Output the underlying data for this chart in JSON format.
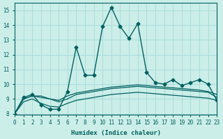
{
  "xlabel": "Humidex (Indice chaleur)",
  "ylabel": "",
  "bg_color": "#cceee8",
  "grid_color": "#aadddd",
  "line_color": "#006060",
  "x_min": 0,
  "x_max": 23,
  "y_min": 8,
  "y_max": 15.5,
  "yticks": [
    8,
    9,
    10,
    11,
    12,
    13,
    14,
    15
  ],
  "xticks": [
    0,
    1,
    2,
    3,
    4,
    5,
    6,
    7,
    8,
    9,
    10,
    11,
    12,
    13,
    14,
    15,
    16,
    17,
    18,
    19,
    20,
    21,
    22,
    23
  ],
  "series": [
    {
      "x": [
        0,
        1,
        2,
        3,
        4,
        5,
        6,
        7,
        8,
        9,
        10,
        11,
        12,
        13,
        14,
        15,
        16,
        17,
        18,
        19,
        20,
        21,
        22,
        23
      ],
      "y": [
        8.0,
        9.1,
        9.3,
        8.6,
        8.3,
        8.3,
        9.5,
        12.5,
        10.6,
        10.6,
        13.9,
        15.2,
        13.9,
        13.1,
        14.1,
        10.8,
        10.1,
        10.0,
        10.3,
        9.9,
        10.1,
        10.3,
        10.0,
        8.9
      ],
      "marker": "D",
      "markersize": 2.5,
      "linewidth": 1.0
    },
    {
      "x": [
        0,
        1,
        2,
        3,
        4,
        5,
        6,
        7,
        8,
        9,
        10,
        11,
        12,
        13,
        14,
        15,
        16,
        17,
        18,
        19,
        20,
        21,
        22,
        23
      ],
      "y": [
        8.0,
        9.0,
        9.2,
        9.2,
        9.0,
        8.9,
        9.2,
        9.4,
        9.5,
        9.6,
        9.7,
        9.8,
        9.85,
        9.9,
        9.95,
        9.9,
        9.85,
        9.8,
        9.75,
        9.7,
        9.65,
        9.6,
        9.5,
        9.3
      ],
      "marker": null,
      "markersize": 0,
      "linewidth": 0.9
    },
    {
      "x": [
        0,
        1,
        2,
        3,
        4,
        5,
        6,
        7,
        8,
        9,
        10,
        11,
        12,
        13,
        14,
        15,
        16,
        17,
        18,
        19,
        20,
        21,
        22,
        23
      ],
      "y": [
        8.0,
        9.0,
        9.2,
        9.1,
        9.0,
        8.8,
        9.0,
        9.3,
        9.4,
        9.5,
        9.6,
        9.7,
        9.75,
        9.8,
        9.85,
        9.8,
        9.75,
        9.7,
        9.65,
        9.6,
        9.55,
        9.5,
        9.45,
        9.1
      ],
      "marker": null,
      "markersize": 0,
      "linewidth": 0.9
    },
    {
      "x": [
        0,
        1,
        2,
        3,
        4,
        5,
        6,
        7,
        8,
        9,
        10,
        11,
        12,
        13,
        14,
        15,
        16,
        17,
        18,
        19,
        20,
        21,
        22,
        23
      ],
      "y": [
        8.0,
        8.8,
        9.0,
        8.7,
        8.5,
        8.45,
        8.7,
        8.9,
        9.0,
        9.1,
        9.2,
        9.3,
        9.35,
        9.4,
        9.45,
        9.4,
        9.35,
        9.3,
        9.25,
        9.2,
        9.15,
        9.1,
        9.05,
        8.9
      ],
      "marker": null,
      "markersize": 0,
      "linewidth": 0.9
    }
  ]
}
